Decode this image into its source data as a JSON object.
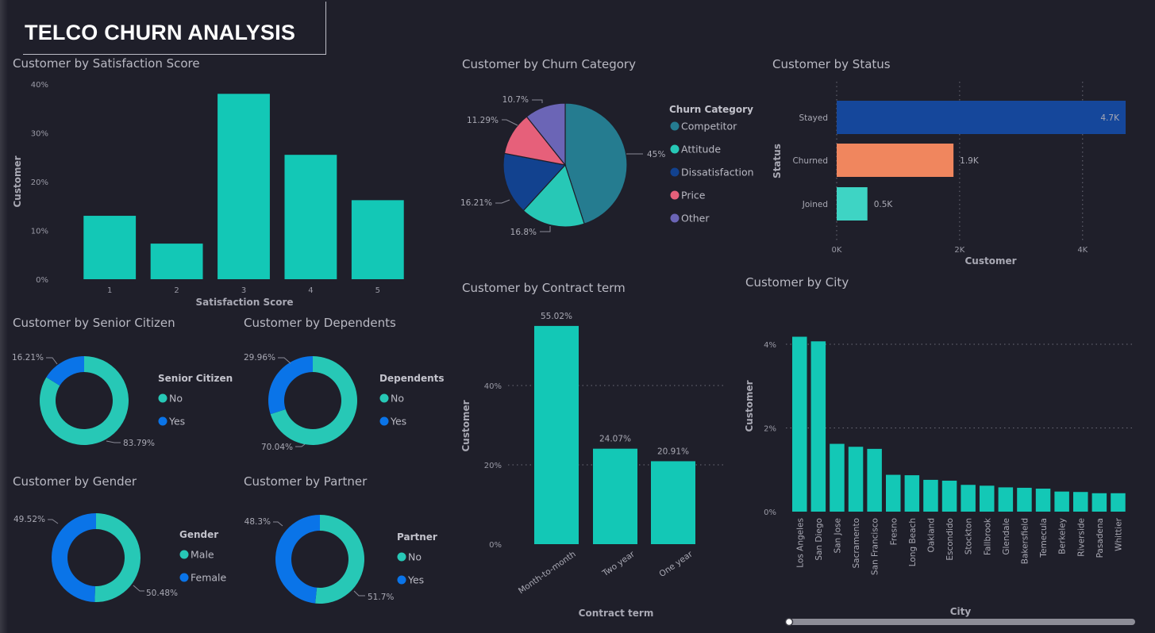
{
  "title": "TELCO CHURN ANALYSIS",
  "colors": {
    "teal": "#13c8b6",
    "cyan": "#27c8b6",
    "blue": "#0a74e8",
    "navy": "#12428f",
    "slate": "#257c90",
    "pink": "#e6607a",
    "purple": "#6b65b6",
    "orange": "#f0865e",
    "light_teal": "#3ed4c4"
  },
  "scrollbar": {
    "position": 0.0
  },
  "chart_data": [
    {
      "id": "satisfaction",
      "type": "bar",
      "title": "Customer by Satisfaction Score",
      "categories": [
        "1",
        "2",
        "3",
        "4",
        "5"
      ],
      "values": [
        13,
        7.3,
        38,
        25.5,
        16.2
      ],
      "xlabel": "Satisfaction Score",
      "ylabel": "Customer",
      "ylim": [
        0,
        40
      ],
      "yticks": [
        "0%",
        "10%",
        "20%",
        "30%",
        "40%"
      ]
    },
    {
      "id": "churn_category",
      "type": "pie",
      "title": "Customer by Churn Category",
      "legend_title": "Churn Category",
      "labels": [
        "Competitor",
        "Attitude",
        "Dissatisfaction",
        "Price",
        "Other"
      ],
      "values": [
        45,
        16.8,
        16.21,
        11.29,
        10.7
      ],
      "value_labels": [
        "45%",
        "16.8%",
        "16.21%",
        "11.29%",
        "10.7%"
      ]
    },
    {
      "id": "status",
      "type": "bar",
      "orientation": "horizontal",
      "title": "Customer by Status",
      "categories": [
        "Stayed",
        "Churned",
        "Joined"
      ],
      "values": [
        4.7,
        1.9,
        0.5
      ],
      "value_labels": [
        "4.7K",
        "1.9K",
        "0.5K"
      ],
      "xlabel": "Customer",
      "ylabel": "Status",
      "xlim": [
        0,
        4.7
      ],
      "xticks": [
        "0K",
        "2K",
        "4K"
      ]
    },
    {
      "id": "senior",
      "type": "pie",
      "donut": true,
      "title": "Customer by Senior Citizen",
      "legend_title": "Senior Citizen",
      "labels": [
        "No",
        "Yes"
      ],
      "values": [
        83.79,
        16.21
      ],
      "value_labels": [
        "83.79%",
        "16.21%"
      ]
    },
    {
      "id": "dependents",
      "type": "pie",
      "donut": true,
      "title": "Customer by Dependents",
      "legend_title": "Dependents",
      "labels": [
        "No",
        "Yes"
      ],
      "values": [
        70.04,
        29.96
      ],
      "value_labels": [
        "70.04%",
        "29.96%"
      ]
    },
    {
      "id": "gender",
      "type": "pie",
      "donut": true,
      "title": "Customer by Gender",
      "legend_title": "Gender",
      "labels": [
        "Male",
        "Female"
      ],
      "values": [
        50.48,
        49.52
      ],
      "value_labels": [
        "50.48%",
        "49.52%"
      ]
    },
    {
      "id": "partner",
      "type": "pie",
      "donut": true,
      "title": "Customer by Partner",
      "legend_title": "Partner",
      "labels": [
        "No",
        "Yes"
      ],
      "values": [
        51.7,
        48.3
      ],
      "value_labels": [
        "51.7%",
        "48.3%"
      ]
    },
    {
      "id": "contract",
      "type": "bar",
      "title": "Customer by Contract term",
      "categories": [
        "Month-to-month",
        "Two year",
        "One year"
      ],
      "values": [
        55.02,
        24.07,
        20.91
      ],
      "value_labels": [
        "55.02%",
        "24.07%",
        "20.91%"
      ],
      "xlabel": "Contract term",
      "ylabel": "Customer",
      "ylim": [
        0,
        60
      ],
      "yticks": [
        "0%",
        "20%",
        "40%"
      ]
    },
    {
      "id": "city",
      "type": "bar",
      "title": "Customer by City",
      "categories": [
        "Los Angeles",
        "San Diego",
        "San Jose",
        "Sacramento",
        "San Francisco",
        "Fresno",
        "Long Beach",
        "Oakland",
        "Escondido",
        "Stockton",
        "Fallbrook",
        "Glendale",
        "Bakersfield",
        "Temecula",
        "Berkeley",
        "Riverside",
        "Pasadena",
        "Whittier"
      ],
      "values": [
        4.18,
        4.07,
        1.62,
        1.55,
        1.5,
        0.88,
        0.87,
        0.76,
        0.74,
        0.64,
        0.62,
        0.58,
        0.57,
        0.55,
        0.48,
        0.47,
        0.44,
        0.44
      ],
      "xlabel": "City",
      "ylabel": "Customer",
      "ylim": [
        0,
        4.5
      ],
      "yticks": [
        "0%",
        "2%",
        "4%"
      ]
    }
  ]
}
